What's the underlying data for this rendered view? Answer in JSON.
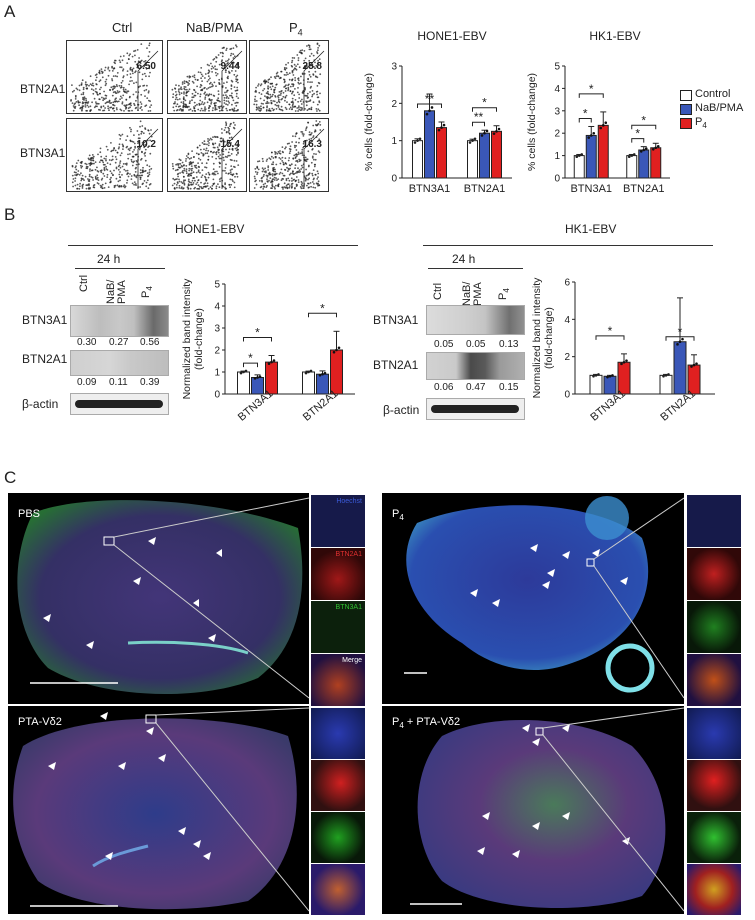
{
  "panels": {
    "A": "A",
    "B": "B",
    "C": "C"
  },
  "flow": {
    "conditions": [
      "Ctrl",
      "NaB/PMA",
      "P4"
    ],
    "rows": [
      {
        "label": "BTN2A1",
        "values": [
          "6.50",
          "9.44",
          "25.8"
        ]
      },
      {
        "label": "BTN3A1",
        "values": [
          "10.2",
          "15.4",
          "16.3"
        ]
      }
    ]
  },
  "legend": [
    {
      "name": "Control",
      "color": "#ffffff"
    },
    {
      "name": "NaB/PMA",
      "color": "#3a57b8"
    },
    {
      "name": "P4",
      "color": "#e02020"
    }
  ],
  "chart_data": [
    {
      "type": "bar",
      "title": "HONE1-EBV",
      "ylabel": "% cells (fold-change)",
      "ylim": [
        0,
        3
      ],
      "yticks": [
        "0",
        "1",
        "2",
        "3"
      ],
      "categories": [
        "BTN3A1",
        "BTN2A1"
      ],
      "series": [
        {
          "name": "Control",
          "values": [
            1.0,
            1.0
          ],
          "err": [
            0.05,
            0.04
          ]
        },
        {
          "name": "NaB/PMA",
          "values": [
            1.8,
            1.2
          ],
          "err": [
            0.45,
            0.08
          ]
        },
        {
          "name": "P4",
          "values": [
            1.35,
            1.25
          ],
          "err": [
            0.15,
            0.15
          ]
        }
      ],
      "significance": [
        "**",
        "**",
        "*"
      ]
    },
    {
      "type": "bar",
      "title": "HK1-EBV",
      "ylabel": "% cells (fold-change)",
      "ylim": [
        0,
        5
      ],
      "yticks": [
        "0",
        "1",
        "2",
        "3",
        "4",
        "5"
      ],
      "categories": [
        "BTN3A1",
        "BTN2A1"
      ],
      "series": [
        {
          "name": "Control",
          "values": [
            1.0,
            1.0
          ],
          "err": [
            0.05,
            0.05
          ]
        },
        {
          "name": "NaB/PMA",
          "values": [
            1.9,
            1.25
          ],
          "err": [
            0.4,
            0.15
          ]
        },
        {
          "name": "P4",
          "values": [
            2.35,
            1.35
          ],
          "err": [
            0.6,
            0.2
          ]
        }
      ],
      "significance": [
        "*",
        "*",
        "*",
        "*"
      ]
    },
    {
      "type": "bar",
      "title": "HONE1-EBV",
      "ylabel": "Normalized band intensity (fold-change)",
      "ylim": [
        0,
        5
      ],
      "yticks": [
        "0",
        "1",
        "2",
        "3",
        "4",
        "5"
      ],
      "categories": [
        "BTN3A1",
        "BTN2A1"
      ],
      "series": [
        {
          "name": "Control",
          "values": [
            1.0,
            1.0
          ],
          "err": [
            0.04,
            0.04
          ]
        },
        {
          "name": "NaB/PMA",
          "values": [
            0.75,
            0.9
          ],
          "err": [
            0.12,
            0.15
          ]
        },
        {
          "name": "P4",
          "values": [
            1.45,
            2.0
          ],
          "err": [
            0.3,
            0.85
          ]
        }
      ],
      "significance": [
        "*",
        "*",
        "*"
      ]
    },
    {
      "type": "bar",
      "title": "HK1-EBV",
      "ylabel": "Normalized band intensity (fold-change)",
      "ylim": [
        0,
        6
      ],
      "yticks": [
        "0",
        "2",
        "4",
        "6"
      ],
      "categories": [
        "BTN3A1",
        "BTN2A1"
      ],
      "series": [
        {
          "name": "Control",
          "values": [
            1.0,
            1.0
          ],
          "err": [
            0.05,
            0.05
          ]
        },
        {
          "name": "NaB/PMA",
          "values": [
            0.95,
            2.8
          ],
          "err": [
            0.05,
            2.35
          ]
        },
        {
          "name": "P4",
          "values": [
            1.7,
            1.55
          ],
          "err": [
            0.45,
            0.55
          ]
        }
      ],
      "significance": [
        "*",
        "*"
      ]
    }
  ],
  "western": {
    "honee": {
      "title": "HONE1-EBV",
      "time": "24 h",
      "lanes": [
        "Ctrl",
        "NaB/PMA",
        "P4"
      ],
      "bands": [
        {
          "label": "BTN3A1",
          "values": [
            "0.30",
            "0.27",
            "0.56"
          ]
        },
        {
          "label": "BTN2A1",
          "values": [
            "0.09",
            "0.11",
            "0.39"
          ]
        },
        {
          "label": "β-actin"
        }
      ]
    },
    "hk1": {
      "title": "HK1-EBV",
      "time": "24 h",
      "lanes": [
        "Ctrl",
        "NaB/PMA",
        "P4"
      ],
      "bands": [
        {
          "label": "BTN3A1",
          "values": [
            "0.05",
            "0.05",
            "0.13"
          ]
        },
        {
          "label": "BTN2A1",
          "values": [
            "0.06",
            "0.47",
            "0.15"
          ]
        },
        {
          "label": "β-actin"
        }
      ]
    }
  },
  "tissue": {
    "panels": [
      "PBS",
      "P4",
      "PTA-Vδ2",
      "P4 + PTA-Vδ2"
    ],
    "inset_labels": [
      "Hoechst",
      "BTN2A1",
      "BTN3A1",
      "Merge"
    ]
  }
}
